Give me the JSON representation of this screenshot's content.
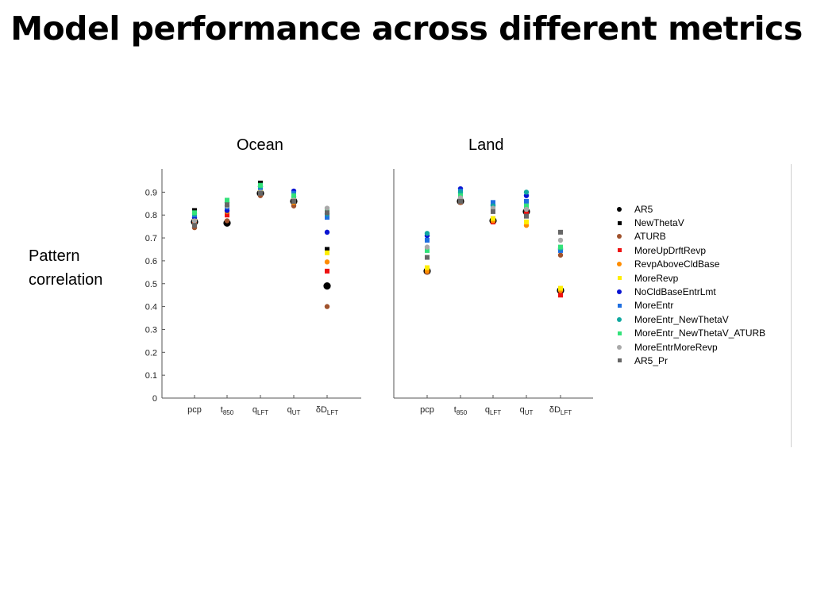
{
  "slide": {
    "title": "Model performance across different metrics",
    "y_caption_line1": "Pattern",
    "y_caption_line2": "correlation"
  },
  "chart_data": [
    {
      "type": "scatter",
      "title": "Ocean",
      "ylim": [
        0,
        1
      ],
      "yticks": [
        "0",
        "0.1",
        "0.2",
        "0.3",
        "0.4",
        "0.5",
        "0.6",
        "0.7",
        "0.8",
        "0.9"
      ],
      "categories": [
        {
          "base": "pcp",
          "sub": ""
        },
        {
          "base": "t",
          "sub": "850"
        },
        {
          "base": "q",
          "sub": "LFT"
        },
        {
          "base": "q",
          "sub": "UT"
        },
        {
          "base": "δD",
          "sub": "LFT"
        }
      ],
      "series": [
        {
          "name": "AR5",
          "values": [
            0.77,
            0.765,
            0.895,
            0.86,
            0.49
          ]
        },
        {
          "name": "NewThetaV",
          "values": [
            0.82,
            0.845,
            0.94,
            0.875,
            0.65
          ]
        },
        {
          "name": "ATURB",
          "values": [
            0.745,
            0.775,
            0.885,
            0.84,
            0.4
          ]
        },
        {
          "name": "MoreUpDrftRevp",
          "values": [
            0.77,
            0.8,
            0.91,
            0.865,
            0.555
          ]
        },
        {
          "name": "RevpAboveCldBase",
          "values": [
            0.76,
            0.815,
            0.905,
            0.855,
            0.595
          ]
        },
        {
          "name": "MoreRevp",
          "values": [
            0.78,
            0.83,
            0.915,
            0.87,
            0.635
          ]
        },
        {
          "name": "NoCldBaseEntrLmt",
          "values": [
            0.79,
            0.82,
            0.925,
            0.905,
            0.725
          ]
        },
        {
          "name": "MoreEntr",
          "values": [
            0.8,
            0.835,
            0.92,
            0.895,
            0.79
          ]
        },
        {
          "name": "MoreEntr_NewThetaV",
          "values": [
            0.805,
            0.855,
            0.925,
            0.88,
            0.805
          ]
        },
        {
          "name": "MoreEntr_NewThetaV_ATURB",
          "values": [
            0.81,
            0.865,
            0.93,
            0.885,
            0.815
          ]
        },
        {
          "name": "MoreEntrMoreRevp",
          "values": [
            0.775,
            0.84,
            0.9,
            0.865,
            0.83
          ]
        },
        {
          "name": "AR5_Pr",
          "values": [
            0.755,
            0.845,
            0.895,
            0.86,
            0.81
          ]
        }
      ]
    },
    {
      "type": "scatter",
      "title": "Land",
      "ylim": [
        0,
        1
      ],
      "categories": [
        {
          "base": "pcp",
          "sub": ""
        },
        {
          "base": "t",
          "sub": "850"
        },
        {
          "base": "q",
          "sub": "LFT"
        },
        {
          "base": "q",
          "sub": "UT"
        },
        {
          "base": "δD",
          "sub": "LFT"
        }
      ],
      "series": [
        {
          "name": "AR5",
          "values": [
            0.555,
            0.86,
            0.775,
            0.815,
            0.47
          ]
        },
        {
          "name": "NewThetaV",
          "values": [
            0.56,
            0.865,
            0.78,
            0.82,
            0.46
          ]
        },
        {
          "name": "ATURB",
          "values": [
            0.55,
            0.855,
            0.77,
            0.81,
            0.625
          ]
        },
        {
          "name": "MoreUpDrftRevp",
          "values": [
            0.56,
            0.86,
            0.77,
            0.805,
            0.45
          ]
        },
        {
          "name": "RevpAboveCldBase",
          "values": [
            0.555,
            0.86,
            0.775,
            0.755,
            0.47
          ]
        },
        {
          "name": "MoreRevp",
          "values": [
            0.57,
            0.865,
            0.785,
            0.77,
            0.48
          ]
        },
        {
          "name": "NoCldBaseEntrLmt",
          "values": [
            0.71,
            0.915,
            0.845,
            0.885,
            0.65
          ]
        },
        {
          "name": "MoreEntr",
          "values": [
            0.69,
            0.905,
            0.855,
            0.86,
            0.645
          ]
        },
        {
          "name": "MoreEntr_NewThetaV",
          "values": [
            0.72,
            0.9,
            0.84,
            0.9,
            0.655
          ]
        },
        {
          "name": "MoreEntr_NewThetaV_ATURB",
          "values": [
            0.645,
            0.885,
            0.825,
            0.84,
            0.66
          ]
        },
        {
          "name": "MoreEntrMoreRevp",
          "values": [
            0.66,
            0.875,
            0.83,
            0.825,
            0.69
          ]
        },
        {
          "name": "AR5_Pr",
          "values": [
            0.615,
            0.86,
            0.815,
            0.795,
            0.725
          ]
        }
      ]
    }
  ],
  "legend": [
    {
      "name": "AR5",
      "color": "#000000",
      "marker": "circle"
    },
    {
      "name": "NewThetaV",
      "color": "#000000",
      "marker": "square"
    },
    {
      "name": "ATURB",
      "color": "#a0522d",
      "marker": "circle"
    },
    {
      "name": "MoreUpDrftRevp",
      "color": "#ee1111",
      "marker": "square"
    },
    {
      "name": "RevpAboveCldBase",
      "color": "#ff8c00",
      "marker": "circle"
    },
    {
      "name": "MoreRevp",
      "color": "#ffee00",
      "marker": "square"
    },
    {
      "name": "NoCldBaseEntrLmt",
      "color": "#0a14d2",
      "marker": "circle"
    },
    {
      "name": "MoreEntr",
      "color": "#1f6fe0",
      "marker": "square"
    },
    {
      "name": "MoreEntr_NewThetaV",
      "color": "#10a8a0",
      "marker": "circle"
    },
    {
      "name": "MoreEntr_NewThetaV_ATURB",
      "color": "#33e27a",
      "marker": "square"
    },
    {
      "name": "MoreEntrMoreRevp",
      "color": "#a9a9a9",
      "marker": "circle"
    },
    {
      "name": "AR5_Pr",
      "color": "#666666",
      "marker": "square"
    }
  ]
}
